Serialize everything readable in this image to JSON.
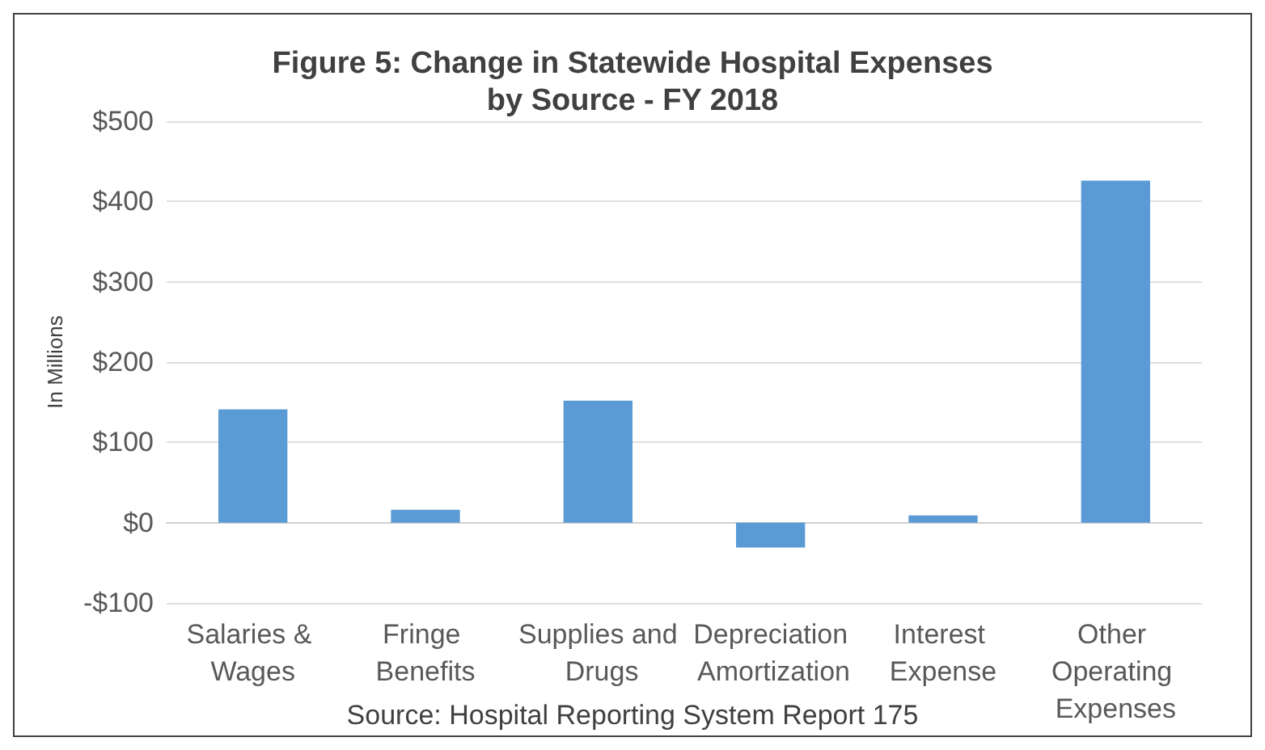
{
  "chart_data": {
    "type": "bar",
    "title": "Figure 5: Change in Statewide Hospital Expenses\nby Source - FY 2018",
    "ylabel": "In Millions",
    "categories": [
      "Salaries & Wages",
      "Fringe Benefits",
      "Supplies and Drugs",
      "Depreciation Amortization",
      "Interest Expense",
      "Other Operating Expenses"
    ],
    "values": [
      141,
      16,
      152,
      -31,
      9,
      426
    ],
    "color": "#5b9bd5",
    "ylim": [
      -100,
      500
    ],
    "yticks": [
      {
        "value": -100,
        "label": "-$100"
      },
      {
        "value": 0,
        "label": "$0"
      },
      {
        "value": 100,
        "label": "$100"
      },
      {
        "value": 200,
        "label": "$200"
      },
      {
        "value": 300,
        "label": "$300"
      },
      {
        "value": 400,
        "label": "$400"
      },
      {
        "value": 500,
        "label": "$500"
      }
    ],
    "grid": "y",
    "annotations": [
      "Source: Hospital Reporting System Report 175"
    ]
  }
}
